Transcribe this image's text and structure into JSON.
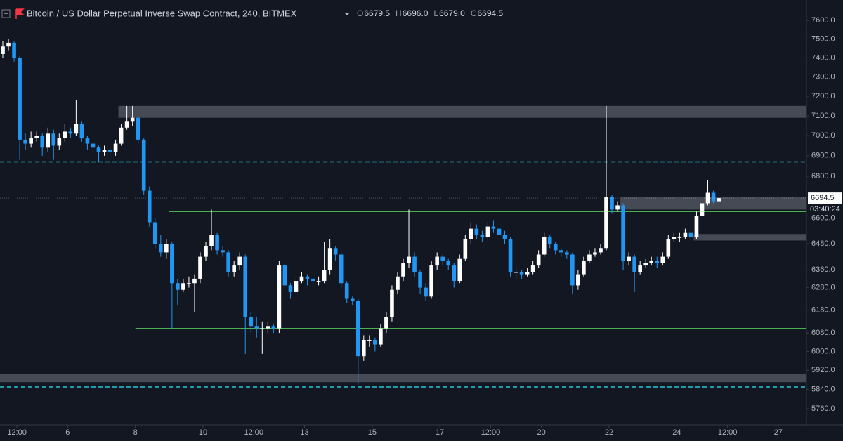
{
  "chart_data": {
    "type": "candlestick",
    "title": "Bitcoin / US Dollar Perpetual Inverse Swap Contract, 240, BITMEX",
    "ohlc_legend": [
      {
        "label": "O",
        "value": "6679.5"
      },
      {
        "label": "H",
        "value": "6696.0"
      },
      {
        "label": "L",
        "value": "6679.0"
      },
      {
        "label": "C",
        "value": "6694.5"
      }
    ],
    "countdown": "03:40:24",
    "up_color": "#ffffff",
    "down_color": "#2196f3",
    "yscale": "log",
    "grid": false,
    "ylim": [
      5708,
      7712
    ],
    "yticks": [
      {
        "value": 7600,
        "label": "7600.0"
      },
      {
        "value": 7500,
        "label": "7500.0"
      },
      {
        "value": 7400,
        "label": "7400.0"
      },
      {
        "value": 7300,
        "label": "7300.0"
      },
      {
        "value": 7200,
        "label": "7200.0"
      },
      {
        "value": 7100,
        "label": "7100.0"
      },
      {
        "value": 7000,
        "label": "7000.0"
      },
      {
        "value": 6900,
        "label": "6900.0"
      },
      {
        "value": 6800,
        "label": "6800.0"
      },
      {
        "value": 6600,
        "label": "6600.0"
      },
      {
        "value": 6480,
        "label": "6480.0"
      },
      {
        "value": 6360,
        "label": "6360.0"
      },
      {
        "value": 6280,
        "label": "6280.0"
      },
      {
        "value": 6180,
        "label": "6180.0"
      },
      {
        "value": 6080,
        "label": "6080.0"
      },
      {
        "value": 6000,
        "label": "6000.0"
      },
      {
        "value": 5920,
        "label": "5920.0"
      },
      {
        "value": 5840,
        "label": "5840.0"
      },
      {
        "value": 5760,
        "label": "5760.0"
      }
    ],
    "xlim": [
      0,
      143
    ],
    "xticks": [
      {
        "value": 3,
        "label": "12:00"
      },
      {
        "value": 12,
        "label": "6"
      },
      {
        "value": 24,
        "label": "8"
      },
      {
        "value": 36,
        "label": "10"
      },
      {
        "value": 45,
        "label": "12:00"
      },
      {
        "value": 54,
        "label": "13"
      },
      {
        "value": 66,
        "label": "15"
      },
      {
        "value": 78,
        "label": "17"
      },
      {
        "value": 87,
        "label": "12:00"
      },
      {
        "value": 96,
        "label": "20"
      },
      {
        "value": 108,
        "label": "22"
      },
      {
        "value": 120,
        "label": "24"
      },
      {
        "value": 129,
        "label": "12:00"
      },
      {
        "value": 138,
        "label": "27"
      }
    ],
    "open": [
      7420,
      7460,
      7480,
      7400,
      6980,
      6960,
      6990,
      7000,
      6940,
      7010,
      6950,
      6990,
      7020,
      7010,
      7060,
      6990,
      6960,
      6940,
      6920,
      6930,
      6920,
      6960,
      7040,
      7070,
      7090,
      6980,
      6730,
      6580,
      6480,
      6440,
      6480,
      6300,
      6270,
      6300,
      6300,
      6320,
      6420,
      6470,
      6520,
      6450,
      6440,
      6350,
      6380,
      6420,
      6150,
      6110,
      6100,
      6100,
      6110,
      6100,
      6380,
      6290,
      6260,
      6310,
      6330,
      6320,
      6310,
      6310,
      6360,
      6460,
      6430,
      6300,
      6230,
      6220,
      5980,
      6050,
      6050,
      6030,
      6100,
      6150,
      6270,
      6330,
      6390,
      6420,
      6350,
      6280,
      6240,
      6380,
      6420,
      6400,
      6380,
      6310,
      6410,
      6500,
      6550,
      6520,
      6510,
      6560,
      6550,
      6520,
      6500,
      6350,
      6350,
      6340,
      6350,
      6380,
      6430,
      6510,
      6480,
      6450,
      6440,
      6430,
      6290,
      6340,
      6400,
      6430,
      6440,
      6460,
      6700,
      6640,
      6660,
      6400,
      6420,
      6350,
      6380,
      6390,
      6400,
      6390,
      6420,
      6500,
      6510,
      6510,
      6530,
      6510,
      6610,
      6670,
      6720,
      6679.5
    ],
    "high": [
      7490,
      7500,
      7490,
      7410,
      7010,
      7020,
      7020,
      7010,
      7040,
      7030,
      7010,
      7060,
      7040,
      7180,
      7070,
      7000,
      6970,
      6950,
      6950,
      6940,
      6980,
      7060,
      7150,
      7150,
      7100,
      6990,
      6750,
      6600,
      6520,
      6500,
      6490,
      6320,
      6320,
      6330,
      6340,
      6440,
      6490,
      6640,
      6530,
      6470,
      6450,
      6400,
      6440,
      6430,
      6170,
      6150,
      6130,
      6130,
      6120,
      6400,
      6390,
      6300,
      6330,
      6350,
      6340,
      6330,
      6330,
      6490,
      6500,
      6470,
      6440,
      6310,
      6240,
      6230,
      6070,
      6070,
      6060,
      6120,
      6170,
      6290,
      6350,
      6410,
      6640,
      6440,
      6360,
      6300,
      6400,
      6440,
      6430,
      6410,
      6390,
      6430,
      6520,
      6580,
      6570,
      6540,
      6580,
      6590,
      6560,
      6540,
      6510,
      6370,
      6360,
      6370,
      6400,
      6450,
      6530,
      6520,
      6490,
      6460,
      6450,
      6440,
      6360,
      6420,
      6450,
      6460,
      6480,
      7150,
      6710,
      6680,
      6670,
      6440,
      6430,
      6400,
      6410,
      6420,
      6420,
      6440,
      6520,
      6530,
      6530,
      6550,
      6540,
      6630,
      6690,
      6780,
      6730,
      6696
    ],
    "low": [
      7400,
      7440,
      7380,
      6880,
      6930,
      6940,
      6970,
      6900,
      6920,
      6880,
      6930,
      6970,
      6990,
      7000,
      6970,
      6930,
      6910,
      6870,
      6900,
      6900,
      6900,
      6950,
      7030,
      7050,
      6960,
      6710,
      6560,
      6460,
      6420,
      6410,
      6100,
      6200,
      6260,
      6280,
      6170,
      6300,
      6400,
      6450,
      6430,
      6420,
      6330,
      6330,
      6360,
      5990,
      6080,
      6060,
      5990,
      6080,
      6080,
      6080,
      6270,
      6230,
      6250,
      6300,
      6290,
      6290,
      6290,
      6300,
      6340,
      6400,
      6280,
      6210,
      6200,
      5860,
      5960,
      6020,
      6000,
      6020,
      6080,
      6130,
      6250,
      6310,
      6370,
      6330,
      6250,
      6220,
      6230,
      6360,
      6380,
      6360,
      6280,
      6300,
      6400,
      6480,
      6500,
      6490,
      6500,
      6530,
      6500,
      6480,
      6330,
      6320,
      6320,
      6330,
      6340,
      6370,
      6420,
      6460,
      6430,
      6420,
      6410,
      6250,
      6270,
      6330,
      6390,
      6420,
      6430,
      6450,
      6620,
      6630,
      6360,
      6380,
      6260,
      6340,
      6370,
      6380,
      6370,
      6380,
      6410,
      6490,
      6490,
      6500,
      6490,
      6500,
      6600,
      6660,
      6670,
      6679
    ],
    "close": [
      7460,
      7480,
      7400,
      6980,
      6960,
      6990,
      7000,
      6940,
      7010,
      6950,
      6990,
      7020,
      7010,
      7060,
      6990,
      6960,
      6940,
      6920,
      6930,
      6920,
      6960,
      7040,
      7070,
      7090,
      6980,
      6730,
      6580,
      6480,
      6440,
      6480,
      6300,
      6270,
      6300,
      6300,
      6320,
      6420,
      6470,
      6520,
      6450,
      6440,
      6350,
      6380,
      6420,
      6150,
      6110,
      6100,
      6100,
      6110,
      6100,
      6380,
      6290,
      6260,
      6310,
      6330,
      6320,
      6310,
      6310,
      6360,
      6460,
      6430,
      6300,
      6230,
      6220,
      5980,
      6050,
      6050,
      6030,
      6100,
      6150,
      6270,
      6330,
      6390,
      6420,
      6350,
      6280,
      6240,
      6380,
      6420,
      6400,
      6380,
      6310,
      6410,
      6500,
      6550,
      6520,
      6510,
      6560,
      6550,
      6520,
      6500,
      6350,
      6350,
      6340,
      6350,
      6380,
      6430,
      6510,
      6480,
      6450,
      6440,
      6430,
      6290,
      6340,
      6400,
      6430,
      6440,
      6460,
      6700,
      6640,
      6660,
      6400,
      6420,
      6350,
      6380,
      6390,
      6400,
      6390,
      6420,
      6500,
      6510,
      6510,
      6530,
      6510,
      6610,
      6670,
      6720,
      6679.5,
      6694.5
    ],
    "zones": [
      {
        "start_index": 21,
        "top": 7150,
        "bottom": 7090
      },
      {
        "start_index": 110,
        "top": 6700,
        "bottom": 6640
      },
      {
        "start_index": 123,
        "top": 6525,
        "bottom": 6495
      },
      {
        "start_index": 0,
        "top": 5905,
        "bottom": 5870
      }
    ],
    "zone_color": "#50535e",
    "levels": [
      {
        "start_index": 30,
        "value": 6630,
        "color": "#4caf50",
        "style": "solid"
      },
      {
        "start_index": 24,
        "value": 6100,
        "color": "#4caf50",
        "style": "solid"
      },
      {
        "start_index": 0,
        "value": 6870,
        "color": "#26c6da",
        "style": "dashed"
      },
      {
        "start_index": 0,
        "value": 5850,
        "color": "#26c6da",
        "style": "dashed"
      }
    ]
  }
}
